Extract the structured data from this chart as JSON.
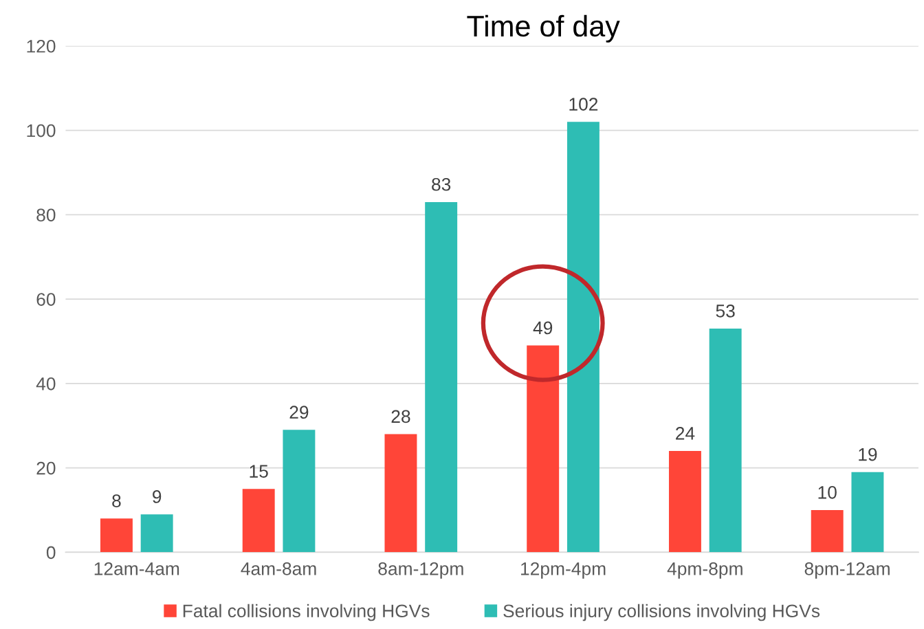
{
  "chart_data": {
    "type": "bar",
    "title": "Time of day",
    "categories": [
      "12am-4am",
      "4am-8am",
      "8am-12pm",
      "12pm-4pm",
      "4pm-8pm",
      "8pm-12am"
    ],
    "series": [
      {
        "name": "Fatal collisions involving HGVs",
        "color": "#ff4538",
        "values": [
          8,
          15,
          28,
          49,
          24,
          10
        ]
      },
      {
        "name": "Serious injury collisions involving HGVs",
        "color": "#2ebdb4",
        "values": [
          9,
          29,
          83,
          102,
          53,
          19
        ]
      }
    ],
    "ylim": [
      0,
      120
    ],
    "yticks": [
      0,
      20,
      40,
      60,
      80,
      100,
      120
    ],
    "grid": "y",
    "legend": "bottom",
    "data_labels": true
  }
}
